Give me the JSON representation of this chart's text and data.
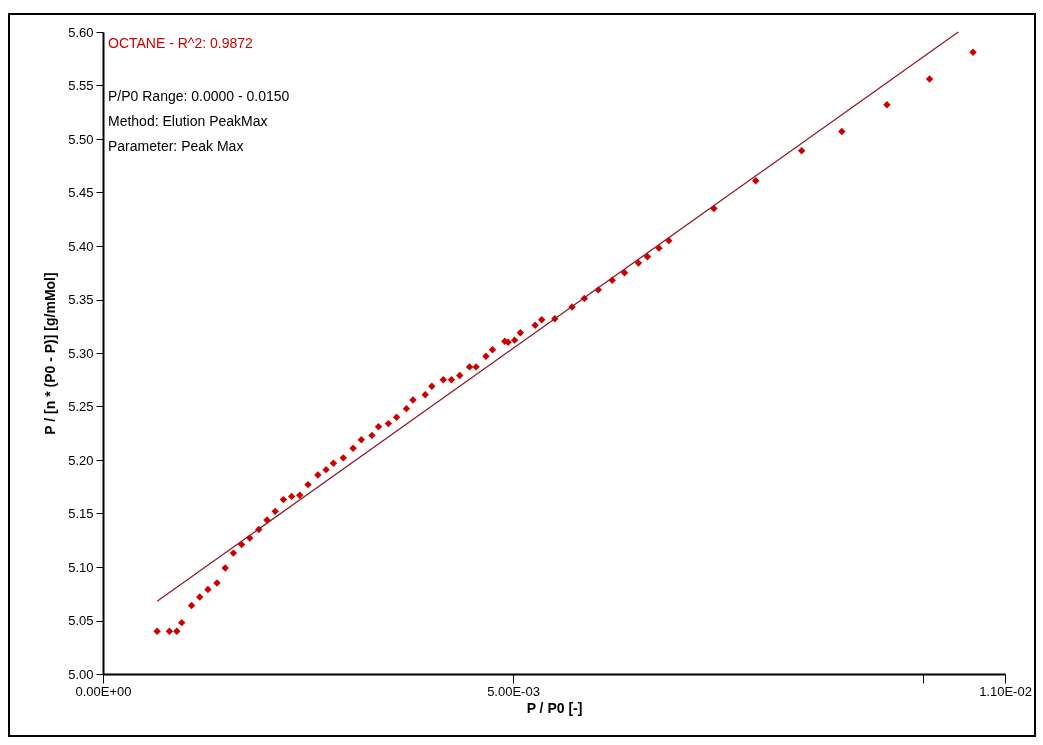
{
  "chart_data": {
    "type": "scatter",
    "title": "OCTANE - R^2: 0.9872",
    "annotations": [
      "P/P0 Range: 0.0000 - 0.0150",
      "Method: Elution PeakMax",
      "Parameter: Peak Max"
    ],
    "xlabel": "P / P0 [-]",
    "ylabel": "P / [n * (P0 - P)] [g/mMol]",
    "xlim": [
      0,
      0.011
    ],
    "ylim": [
      5.0,
      5.6
    ],
    "xticks": [
      {
        "value": 0,
        "label": "0.00E+00"
      },
      {
        "value": 0.005,
        "label": "5.00E-03"
      },
      {
        "value": 0.01,
        "label": null
      },
      {
        "value": 0.011,
        "label": "1.10E-02"
      }
    ],
    "yticks": [
      {
        "value": 5.0,
        "label": "5.00"
      },
      {
        "value": 5.05,
        "label": "5.05"
      },
      {
        "value": 5.1,
        "label": "5.10"
      },
      {
        "value": 5.15,
        "label": "5.15"
      },
      {
        "value": 5.2,
        "label": "5.20"
      },
      {
        "value": 5.25,
        "label": "5.25"
      },
      {
        "value": 5.3,
        "label": "5.30"
      },
      {
        "value": 5.35,
        "label": "5.35"
      },
      {
        "value": 5.4,
        "label": "5.40"
      },
      {
        "value": 5.45,
        "label": "5.45"
      },
      {
        "value": 5.5,
        "label": "5.50"
      },
      {
        "value": 5.55,
        "label": "5.55"
      },
      {
        "value": 5.6,
        "label": "5.60"
      }
    ],
    "grid": false,
    "marker": "diamond",
    "series": [
      {
        "color": "#cc0000",
        "x": [
          0.00066,
          0.00081,
          0.0009,
          0.00096,
          0.00108,
          0.00118,
          0.00128,
          0.00139,
          0.00149,
          0.00159,
          0.00169,
          0.00179,
          0.0019,
          0.002,
          0.0021,
          0.0022,
          0.0023,
          0.0024,
          0.0025,
          0.00262,
          0.00272,
          0.00281,
          0.00293,
          0.00305,
          0.00315,
          0.00328,
          0.00336,
          0.00348,
          0.00358,
          0.0037,
          0.00378,
          0.00393,
          0.00401,
          0.00415,
          0.00425,
          0.00435,
          0.00447,
          0.00455,
          0.00467,
          0.00475,
          0.0049,
          0.00494,
          0.00502,
          0.00509,
          0.00527,
          0.00535,
          0.00551,
          0.00572,
          0.00587,
          0.00604,
          0.00621,
          0.00636,
          0.00653,
          0.00664,
          0.00678,
          0.0069,
          0.00745,
          0.00796,
          0.00852,
          0.00901,
          0.00956,
          0.01008,
          0.01061
        ],
        "values": [
          5.04,
          5.04,
          5.04,
          5.048,
          5.064,
          5.072,
          5.079,
          5.085,
          5.099,
          5.113,
          5.121,
          5.127,
          5.135,
          5.144,
          5.152,
          5.163,
          5.166,
          5.167,
          5.177,
          5.186,
          5.191,
          5.197,
          5.202,
          5.211,
          5.219,
          5.223,
          5.231,
          5.234,
          5.24,
          5.248,
          5.256,
          5.261,
          5.269,
          5.275,
          5.275,
          5.279,
          5.287,
          5.287,
          5.297,
          5.303,
          5.311,
          5.31,
          5.312,
          5.319,
          5.326,
          5.331,
          5.332,
          5.343,
          5.351,
          5.359,
          5.368,
          5.375,
          5.384,
          5.39,
          5.398,
          5.405,
          5.435,
          5.461,
          5.489,
          5.507,
          5.532,
          5.556,
          5.581
        ]
      },
      {
        "type": "line",
        "color": "#8b1a2a",
        "marker": "none",
        "line_style": "solid",
        "x": [
          0.00066,
          0.01043
        ],
        "values": [
          5.068,
          5.6
        ]
      }
    ]
  }
}
